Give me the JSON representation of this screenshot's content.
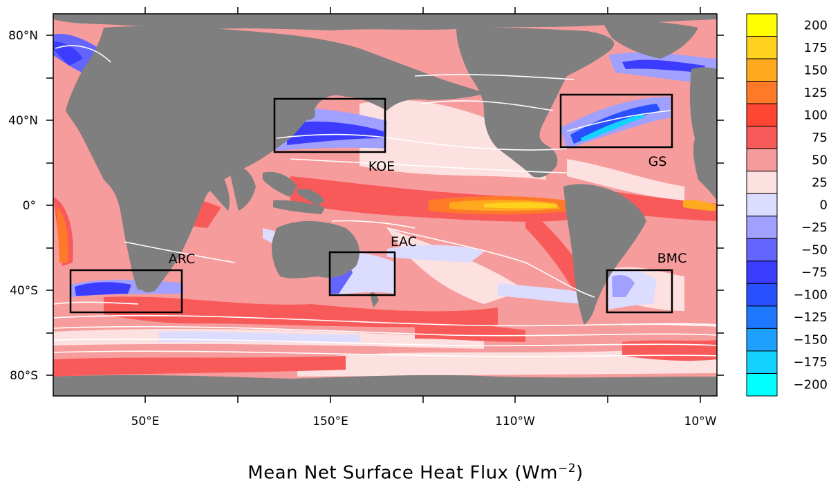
{
  "title": {
    "text": "Mean Net Surface Heat Flux (Wm",
    "superscript": "−2",
    "suffix": ")"
  },
  "map": {
    "ocean_base_color": "#f79c9c",
    "land_color": "#7f7f7f",
    "contour_color": "#ffffff",
    "box_color": "#000000"
  },
  "axes": {
    "lat_labels": [
      "80°N",
      "40°N",
      "0°",
      "40°S",
      "80°S"
    ],
    "lon_labels": [
      "50°E",
      "150°E",
      "110°W",
      "10°W"
    ]
  },
  "regions": [
    {
      "name": "KOE"
    },
    {
      "name": "GS"
    },
    {
      "name": "EAC"
    },
    {
      "name": "ARC"
    },
    {
      "name": "BMC"
    }
  ],
  "colorbar": {
    "labels": [
      "200",
      "175",
      "150",
      "125",
      "100",
      "75",
      "50",
      "25",
      "0",
      "−25",
      "−50",
      "−75",
      "−100",
      "−125",
      "−150",
      "−175",
      "−200"
    ],
    "colors": [
      "#ffff00",
      "#ffd21e",
      "#ffaa1e",
      "#ff7a28",
      "#ff4632",
      "#f85a5a",
      "#f79c9c",
      "#fde0e0",
      "#dcdcff",
      "#a0a0ff",
      "#6464ff",
      "#3c3cff",
      "#2850ff",
      "#1e78ff",
      "#1ea0ff",
      "#14d2ff",
      "#00ffff"
    ]
  }
}
